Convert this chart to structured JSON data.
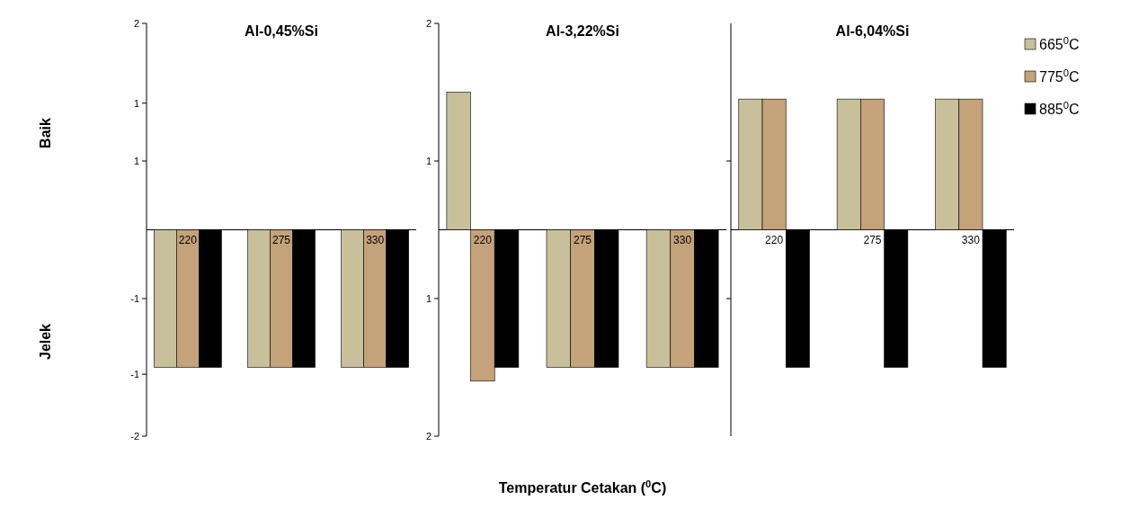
{
  "chart_data": [
    {
      "type": "bar",
      "title": "Al-0,45%Si",
      "categories": [
        "220",
        "275",
        "330"
      ],
      "series": [
        {
          "color": "#c8c09a",
          "values": [
            -1,
            -1,
            -1
          ]
        },
        {
          "color": "#c4a27a",
          "values": [
            -1,
            -1,
            -1
          ]
        },
        {
          "color": "#000000",
          "values": [
            -1,
            -1,
            -1
          ]
        }
      ],
      "ylim": [
        -1.5,
        1.5
      ],
      "yticks": [
        {
          "value": 1.5,
          "label": "2"
        },
        {
          "value": 0.5,
          "label": "1"
        },
        {
          "value": -0.5,
          "label": "-1"
        },
        {
          "value": -1.5,
          "label": "-2"
        },
        {
          "value": 0.92,
          "label": "1"
        },
        {
          "value": -1.05,
          "label": "-1"
        }
      ],
      "annotations": [
        "Baik",
        "Jelek"
      ]
    },
    {
      "type": "bar",
      "title": "Al-3,22%Si",
      "categories": [
        "220",
        "275",
        "330"
      ],
      "xlabel": "Temperatur Cetakan ($^{0}$C)",
      "series": [
        {
          "color": "#c8c09a",
          "values": [
            1,
            -1,
            -1
          ]
        },
        {
          "color": "#c4a27a",
          "values": [
            -1.1,
            -1,
            -1
          ]
        },
        {
          "color": "#000000",
          "values": [
            -1,
            -1,
            -1
          ]
        }
      ],
      "ylim": [
        -1.5,
        1.5
      ],
      "yticks": [
        {
          "value": 1.5,
          "label": "2"
        },
        {
          "value": 0.5,
          "label": "1"
        },
        {
          "value": -0.5,
          "label": "1"
        },
        {
          "value": -1.5,
          "label": "2"
        }
      ]
    },
    {
      "type": "bar",
      "title": "Al-6,04%Si",
      "categories": [
        "220",
        "275",
        "330"
      ],
      "series": [
        {
          "name": "665$^{0}$C",
          "color": "#c8c09a",
          "values": [
            0.95,
            0.95,
            0.95
          ]
        },
        {
          "name": "775$^{0}$C",
          "color": "#c4a27a",
          "values": [
            0.95,
            0.95,
            0.95
          ]
        },
        {
          "name": "885$^{0}$C",
          "color": "#000000",
          "values": [
            -1,
            -1,
            -1
          ]
        }
      ],
      "ylim": [
        -1.5,
        1.5
      ],
      "yticks": [
        {
          "value": 0.5,
          "label": null
        },
        {
          "value": -0.5,
          "label": null
        }
      ],
      "tick_labels": "x",
      "legend": "right"
    }
  ]
}
